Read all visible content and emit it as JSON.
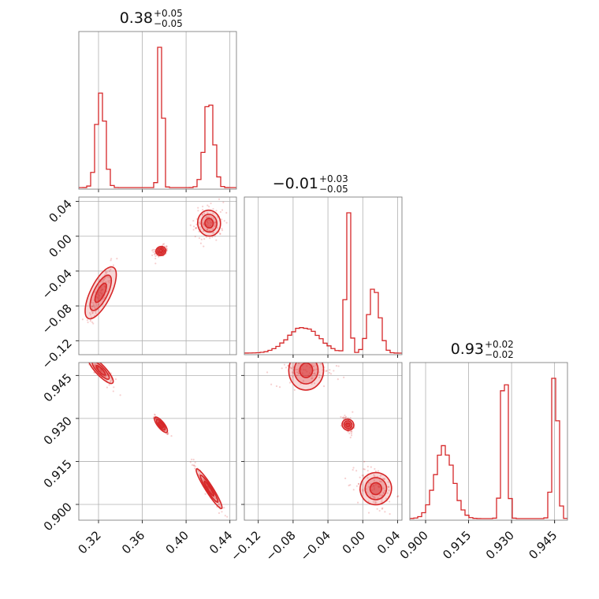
{
  "chart_data": {
    "type": "corner",
    "color": "#d62728",
    "grid": true,
    "parameters": [
      {
        "title_main": "0.38",
        "title_sup": "+0.05",
        "title_sub": "−0.05",
        "range": [
          0.302,
          0.446
        ],
        "ticks": [
          0.32,
          0.36,
          0.4,
          0.44
        ],
        "tick_labels": [
          "0.32",
          "0.36",
          "0.40",
          "0.44"
        ],
        "peaks": [
          {
            "center": 0.322,
            "sigma": 0.0038,
            "height": 0.6
          },
          {
            "center": 0.377,
            "sigma": 0.0018,
            "height": 1.0
          },
          {
            "center": 0.421,
            "sigma": 0.0042,
            "height": 0.55
          }
        ]
      },
      {
        "title_main": "−0.01",
        "title_sup": "+0.03",
        "title_sub": "−0.05",
        "range": [
          -0.136,
          0.045
        ],
        "ticks": [
          -0.12,
          -0.08,
          -0.04,
          0.0,
          0.04
        ],
        "tick_labels": [
          "−0.12",
          "−0.08",
          "−0.04",
          "0.00",
          "0.04"
        ],
        "peaks": [
          {
            "center": -0.068,
            "sigma": 0.018,
            "height": 0.17
          },
          {
            "center": -0.017,
            "sigma": 0.0025,
            "height": 1.0
          },
          {
            "center": 0.013,
            "sigma": 0.0065,
            "height": 0.42
          }
        ]
      },
      {
        "title_main": "0.93",
        "title_sup": "+0.02",
        "title_sub": "−0.02",
        "range": [
          0.8945,
          0.9495
        ],
        "ticks": [
          0.9,
          0.915,
          0.93,
          0.945
        ],
        "tick_labels": [
          "0.900",
          "0.915",
          "0.930",
          "0.945"
        ],
        "peaks": [
          {
            "center": 0.9065,
            "sigma": 0.0032,
            "height": 0.43
          },
          {
            "center": 0.9275,
            "sigma": 0.001,
            "height": 1.0
          },
          {
            "center": 0.9452,
            "sigma": 0.001,
            "height": 0.92
          }
        ]
      }
    ],
    "modes": [
      {
        "p0": 0.322,
        "p1": -0.065,
        "p2": 0.9468
      },
      {
        "p0": 0.377,
        "p1": -0.017,
        "p2": 0.9278
      },
      {
        "p0": 0.421,
        "p1": 0.015,
        "p2": 0.9055
      }
    ]
  }
}
